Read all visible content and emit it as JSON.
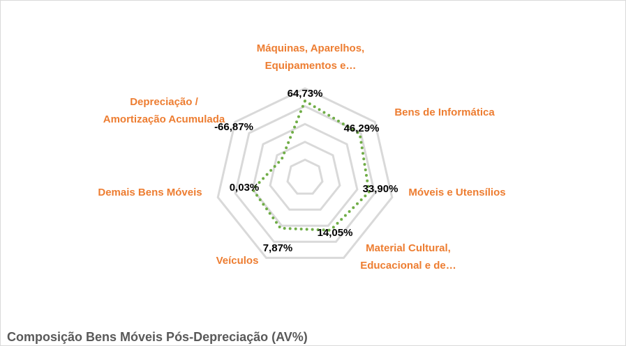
{
  "chart_data": {
    "type": "radar",
    "title": "Composição Bens Móveis Pós-Depreciação (AV%)",
    "categories": [
      "Máquinas, Aparelhos,\nEquipamentos e…",
      "Bens de Informática",
      "Móveis e Utensílios",
      "Material Cultural,\nEducacional e de…",
      "Veículos",
      "Demais Bens Móveis",
      "Depreciação /\nAmortização Acumulada"
    ],
    "series": [
      {
        "name": "AV%",
        "color": "#70ad47",
        "values": [
          64.73,
          46.29,
          33.9,
          14.05,
          7.87,
          0.03,
          -66.87
        ],
        "value_labels": [
          "64,73%",
          "46,29%",
          "33,90%",
          "14,05%",
          "7,87%",
          "0,03%",
          "-66,87%"
        ]
      }
    ],
    "ylim": [
      -150,
      100
    ],
    "yticks": [
      -100,
      -50,
      0,
      50,
      100
    ],
    "grid": true,
    "label_color": "#ed7d31"
  }
}
